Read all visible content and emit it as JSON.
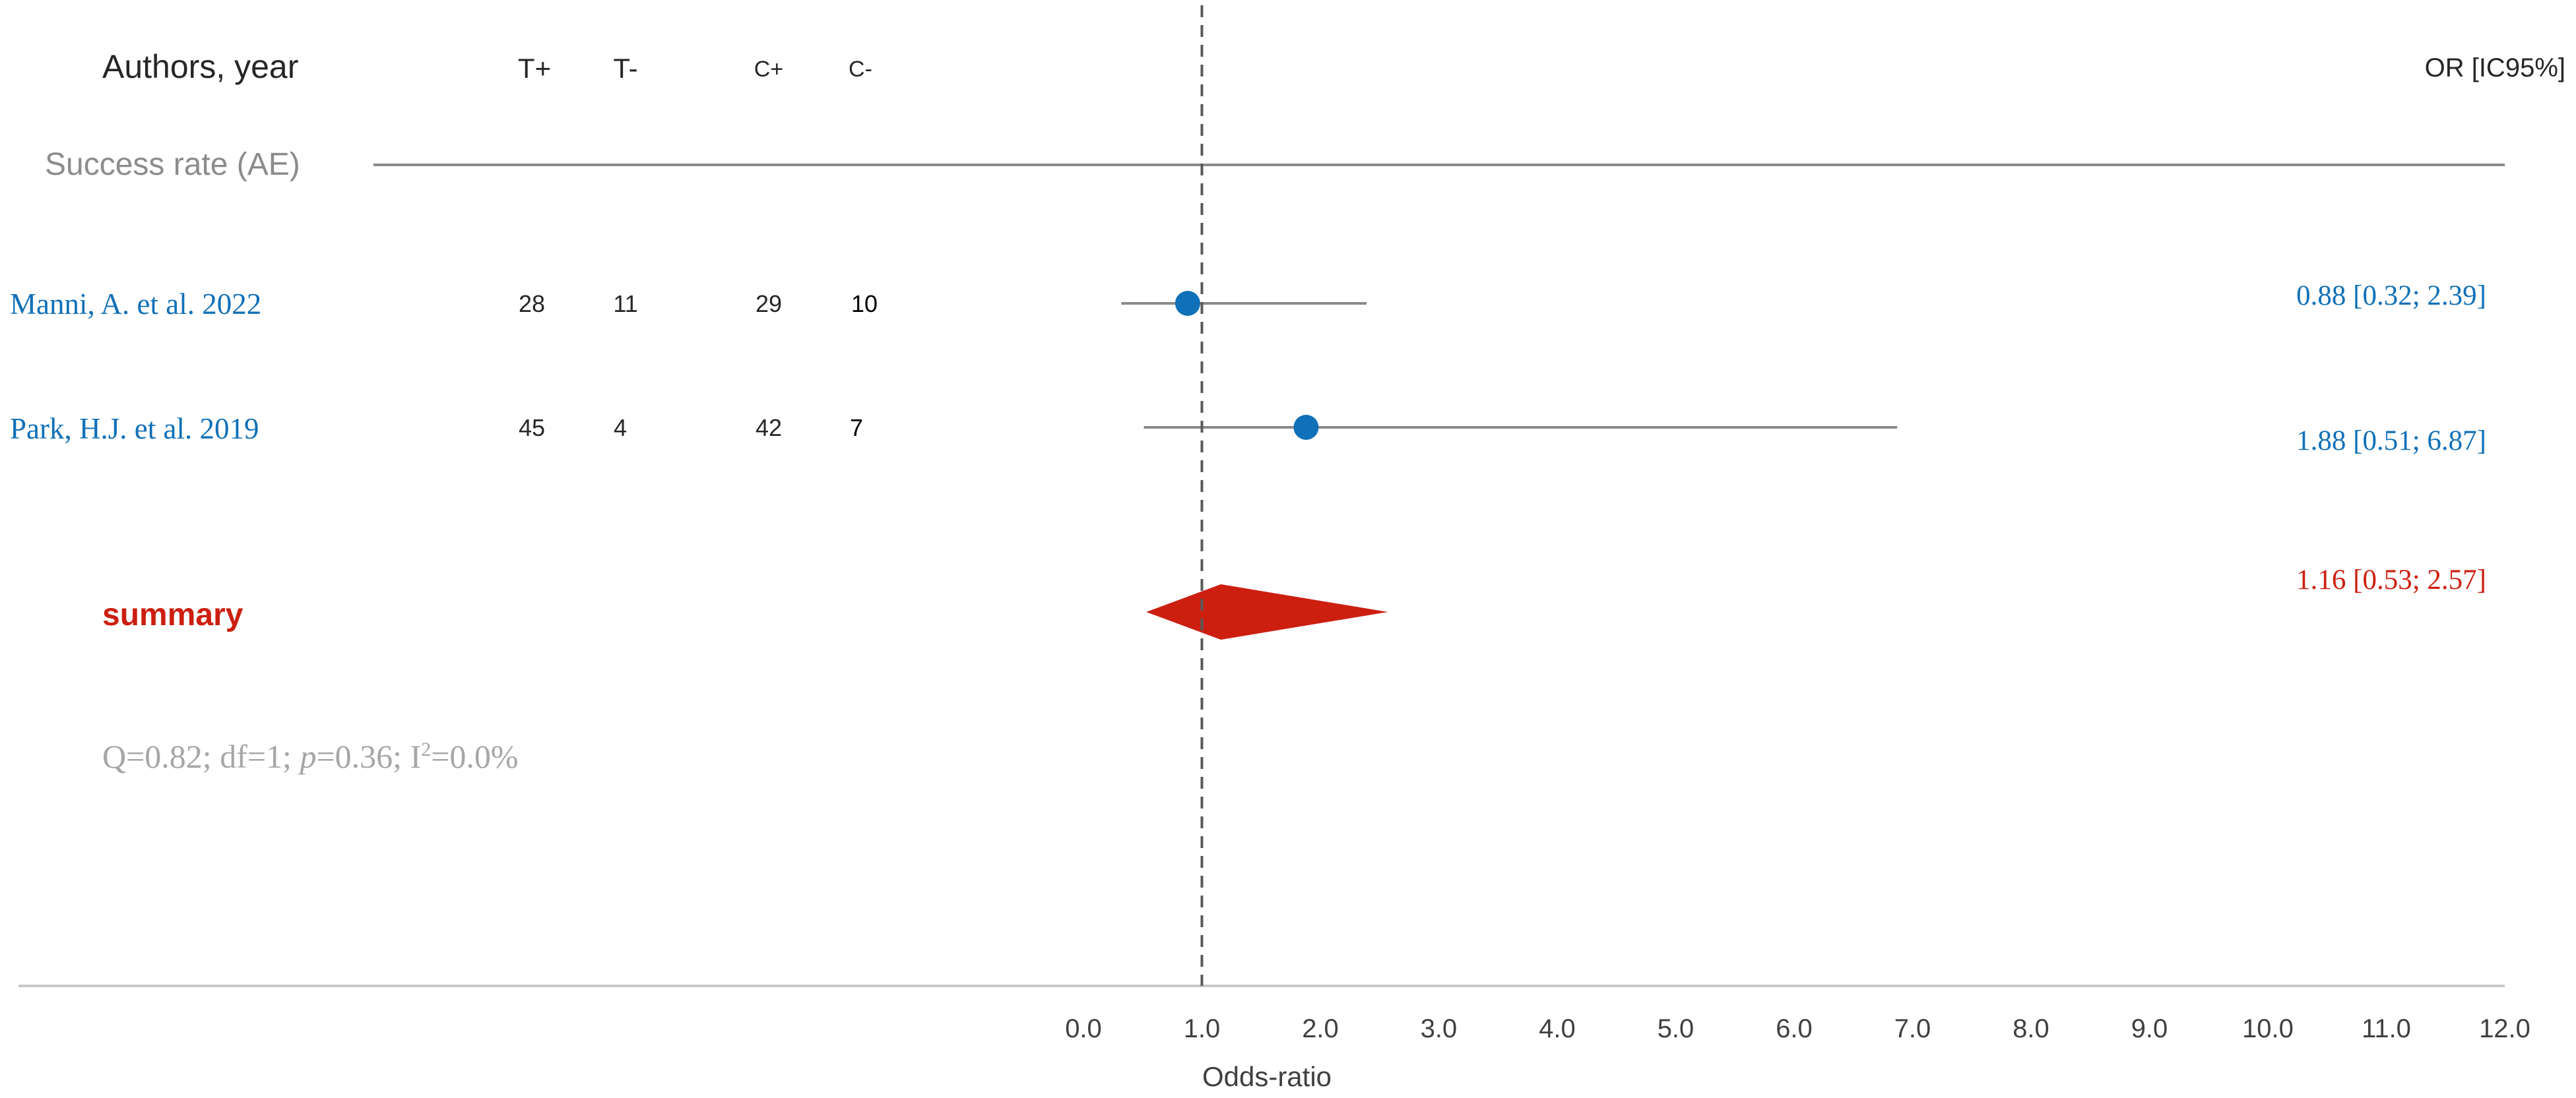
{
  "chart_data": {
    "type": "forest",
    "headers": {
      "authors": "Authors, year",
      "t_pos": "T+",
      "t_neg": "T-",
      "c_pos": "C+",
      "c_neg": "C-",
      "or": "OR [IC95%]"
    },
    "section_label": "Success rate (AE)",
    "studies": [
      {
        "name": "Manni, A. et al. 2022",
        "t_pos": "28",
        "t_neg": "11",
        "c_pos": "29",
        "c_neg": "10",
        "or": 0.88,
        "lower": 0.32,
        "upper": 2.39,
        "ci_text": "0.88 [0.32; 2.39]"
      },
      {
        "name": "Park, H.J. et al. 2019",
        "t_pos": "45",
        "t_neg": "4",
        "c_pos": "42",
        "c_neg": "7",
        "or": 1.88,
        "lower": 0.51,
        "upper": 6.87,
        "ci_text": "1.88 [0.51; 6.87]"
      }
    ],
    "summary": {
      "label": "summary",
      "or": 1.16,
      "lower": 0.53,
      "upper": 2.57,
      "ci_text": "1.16 [0.53; 2.57]"
    },
    "heterogeneity": {
      "prefix": "Q=0.82; df=1; ",
      "p_symbol": "p",
      "p_rest": "=0.36; I",
      "sup": "2",
      "tail": "=0.0%"
    },
    "reference_line": 1.0,
    "xlim": [
      0,
      12
    ],
    "xticks": [
      "0.0",
      "1.0",
      "2.0",
      "3.0",
      "4.0",
      "5.0",
      "6.0",
      "7.0",
      "8.0",
      "9.0",
      "10.0",
      "11.0",
      "12.0"
    ],
    "xlabel": "Odds-ratio",
    "colors": {
      "study": "#1070b8",
      "summary": "#cc1f10",
      "muted": "#a6a6a6",
      "line": "#8a8a8a",
      "text": "#262626"
    }
  }
}
